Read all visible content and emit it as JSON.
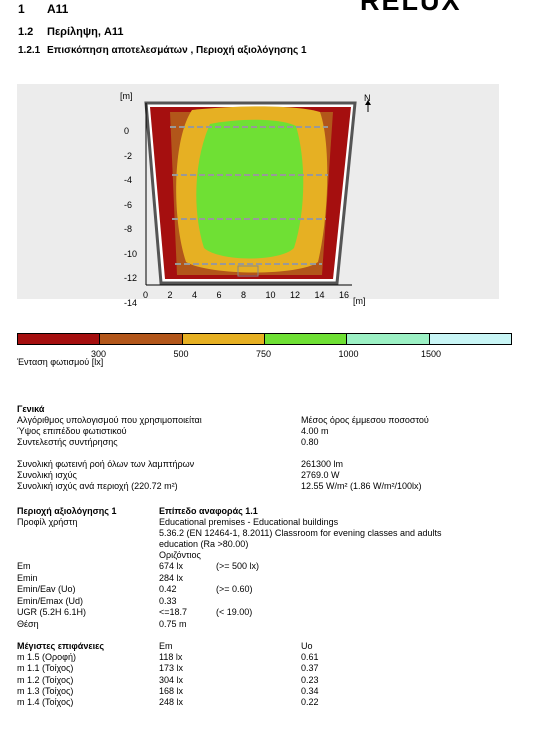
{
  "header": {
    "logo": "RELUX",
    "chapter_num": "1",
    "chapter_title": "A11",
    "sec_num": "1.2",
    "sec_title": "Περίληψη, A11",
    "subsec_num": "1.2.1",
    "subsec_title": "Επισκόπηση αποτελεσμάτων , Περιοχή αξιολόγησης 1"
  },
  "plot": {
    "y_unit": "[m]",
    "x_unit": "[m]",
    "north": "N",
    "y_ticks": [
      "0",
      "-2",
      "-4",
      "-6",
      "-8",
      "-10",
      "-12",
      "-14"
    ],
    "x_ticks": [
      "0",
      "2",
      "4",
      "6",
      "8",
      "10",
      "12",
      "14",
      "16"
    ]
  },
  "scale": {
    "colors": [
      "#a50f0f",
      "#b2561a",
      "#e6b023",
      "#6fe034",
      "#9cf0c4",
      "#c8f5f5"
    ],
    "labels": [
      "300",
      "500",
      "750",
      "1000",
      "1500"
    ],
    "caption": "Ένταση φωτισμού [lx]"
  },
  "general": {
    "title": "Γενικά",
    "rows1": [
      {
        "label": "Αλγόριθμος υπολογισμού που χρησιμοποιείται",
        "value": "Μέσος όρος έμμεσου ποσοστού"
      },
      {
        "label": "Ύψος επιπέδου φωτιστικού",
        "value": "4.00 m"
      },
      {
        "label": "Συντελεστής συντήρησης",
        "value": "0.80"
      }
    ],
    "rows2": [
      {
        "label": "Συνολική φωτεινή ροή όλων των λαμπτήρων",
        "value": "261300 lm"
      },
      {
        "label": "Συνολική ισχύς",
        "value": "2769.0 W"
      },
      {
        "label": "Συνολική ισχύς ανά περιοχή (220.72 m²)",
        "value": "12.55 W/m² (1.86 W/m²/100lx)"
      }
    ]
  },
  "evaluation": {
    "title": "Περιοχή αξιολόγησης 1",
    "ref_title": "Επίπεδο αναφοράς 1.1",
    "profile_label": "Προφίλ χρήστη",
    "profile_lines": [
      "Educational premises - Educational buildings",
      "5.36.2 (EN 12464-1, 8.2011) Classroom for evening classes and adults",
      "education (Ra >80.00)",
      "Οριζόντιος"
    ],
    "rows": [
      {
        "label": "Em",
        "value": "674 lx",
        "req": "(>= 500 lx)"
      },
      {
        "label": "Emin",
        "value": "284 lx",
        "req": ""
      },
      {
        "label": "Emin/Eav (Uo)",
        "value": "0.42",
        "req": "(>= 0.60)"
      },
      {
        "label": "Emin/Emax (Ud)",
        "value": "0.33",
        "req": ""
      },
      {
        "label": "UGR (5.2H 6.1H)",
        "value": "<=18.7",
        "req": "(< 19.00)"
      },
      {
        "label": "Θέση",
        "value": "0.75 m",
        "req": ""
      }
    ]
  },
  "surfaces": {
    "title": "Μέγιστες επιφάνειες",
    "col_em": "Em",
    "col_uo": "Uo",
    "rows": [
      {
        "name": "m 1.5 (Οροφή)",
        "em": "118 lx",
        "uo": "0.61"
      },
      {
        "name": "m 1.1 (Τοίχος)",
        "em": "173 lx",
        "uo": "0.37"
      },
      {
        "name": "m 1.2 (Τοίχος)",
        "em": "304 lx",
        "uo": "0.23"
      },
      {
        "name": "m 1.3 (Τοίχος)",
        "em": "168 lx",
        "uo": "0.34"
      },
      {
        "name": "m 1.4 (Τοίχος)",
        "em": "248 lx",
        "uo": "0.22"
      }
    ]
  }
}
